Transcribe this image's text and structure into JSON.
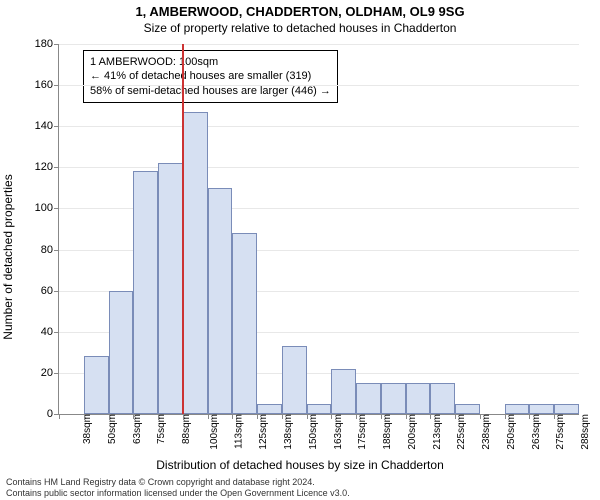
{
  "title": "1, AMBERWOOD, CHADDERTON, OLDHAM, OL9 9SG",
  "subtitle": "Size of property relative to detached houses in Chadderton",
  "ylabel": "Number of detached properties",
  "xlabel": "Distribution of detached houses by size in Chadderton",
  "footer_line1": "Contains HM Land Registry data © Crown copyright and database right 2024.",
  "footer_line2": "Contains public sector information licensed under the Open Government Licence v3.0.",
  "chart": {
    "type": "histogram",
    "ylim": [
      0,
      180
    ],
    "ytick_step": 20,
    "background_color": "#ffffff",
    "grid_color": "#e8e8e8",
    "bar_fill": "#d6e0f2",
    "bar_border": "#7a8cb8",
    "cursor_color": "#cc3333",
    "cursor_x": 100,
    "x_start": 38,
    "x_step": 12.5,
    "x_bins": 21,
    "x_labels": [
      "38sqm",
      "50sqm",
      "63sqm",
      "75sqm",
      "88sqm",
      "100sqm",
      "113sqm",
      "125sqm",
      "138sqm",
      "150sqm",
      "163sqm",
      "175sqm",
      "188sqm",
      "200sqm",
      "213sqm",
      "225sqm",
      "238sqm",
      "250sqm",
      "263sqm",
      "275sqm",
      "288sqm"
    ],
    "values": [
      0,
      28,
      60,
      118,
      122,
      147,
      110,
      88,
      5,
      33,
      5,
      22,
      15,
      15,
      15,
      15,
      5,
      0,
      5,
      5,
      5
    ]
  },
  "tooltip": {
    "line1": "1 AMBERWOOD: 100sqm",
    "line2": "← 41% of detached houses are smaller (319)",
    "line3": "58% of semi-detached houses are larger (446) →"
  }
}
